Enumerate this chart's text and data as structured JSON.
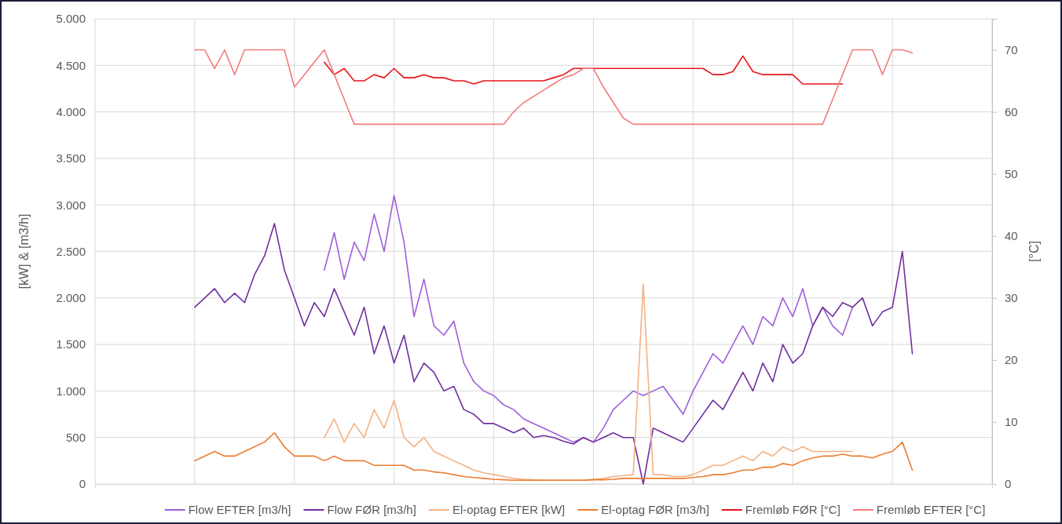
{
  "chart_data": {
    "type": "line",
    "categories": [
      null,
      null,
      null,
      null,
      null,
      null,
      null,
      null,
      null,
      null,
      null,
      null,
      null,
      null,
      null,
      null,
      null,
      null,
      null,
      null,
      null,
      null,
      null,
      null,
      null,
      null,
      null,
      null,
      null,
      null,
      null,
      null,
      null,
      null,
      null,
      null,
      null,
      null,
      null,
      null,
      null,
      null,
      null,
      null,
      null,
      null,
      null,
      null,
      null,
      null,
      null,
      null,
      null,
      null,
      null,
      null,
      null,
      null,
      null,
      null,
      null,
      null,
      null,
      null,
      null,
      null,
      null,
      null,
      null,
      null,
      null,
      null,
      null,
      null,
      null,
      null,
      null,
      null,
      null,
      null,
      null,
      null,
      null,
      null,
      null,
      null,
      null,
      null,
      null,
      null,
      null
    ],
    "ylabel": "[kW] & [m3/h]",
    "y2label": "[°C]",
    "ylim": [
      0,
      5000
    ],
    "yticks": [
      0,
      500,
      {
        "value": 1000,
        "label": "1.000"
      },
      {
        "value": 1500,
        "label": "1.500"
      },
      {
        "value": 2000,
        "label": "2.000"
      },
      {
        "value": 2500,
        "label": "2.500"
      },
      {
        "value": 3000,
        "label": "3.000"
      },
      {
        "value": 3500,
        "label": "3.500"
      },
      {
        "value": 4000,
        "label": "4.000"
      },
      {
        "value": 4500,
        "label": "4.500"
      },
      {
        "value": 5000,
        "label": "5.000"
      }
    ],
    "y2lim": [
      0,
      75
    ],
    "y2ticks": [
      0,
      10,
      20,
      30,
      40,
      50,
      60,
      70
    ],
    "grid": true,
    "legend": "bottom",
    "marker": "none",
    "line_style": "solid",
    "series": [
      {
        "name": "Flow EFTER [m3/h]",
        "color": "#9e5fd8",
        "values": [
          null,
          null,
          null,
          null,
          null,
          null,
          null,
          null,
          null,
          null,
          null,
          null,
          null,
          null,
          null,
          null,
          null,
          null,
          null,
          null,
          null,
          null,
          null,
          2300,
          2700,
          2200,
          2600,
          2400,
          2900,
          2500,
          3100,
          2600,
          1800,
          2200,
          1700,
          1600,
          1750,
          1300,
          1100,
          1000,
          950,
          850,
          800,
          700,
          650,
          600,
          550,
          500,
          450,
          500,
          450,
          600,
          800,
          900,
          1000,
          950,
          1000,
          1050,
          900,
          750,
          1000,
          1200,
          1400,
          1300,
          1500,
          1700,
          1500,
          1800,
          1700,
          2000,
          1800,
          2100,
          1700,
          1900,
          1700,
          1600,
          1900,
          null,
          null,
          null,
          null,
          null,
          null,
          null,
          null,
          null,
          null,
          null,
          null,
          null,
          null
        ]
      },
      {
        "name": "Flow FØR [m3/h]",
        "color": "#7030a0",
        "values": [
          null,
          null,
          null,
          null,
          null,
          null,
          null,
          null,
          null,
          null,
          1900,
          2000,
          2100,
          1950,
          2050,
          1950,
          2250,
          2450,
          2800,
          2300,
          2000,
          1700,
          1950,
          1800,
          2100,
          1850,
          1600,
          1900,
          1400,
          1700,
          1300,
          1600,
          1100,
          1300,
          1200,
          1000,
          1050,
          800,
          750,
          650,
          650,
          600,
          550,
          600,
          500,
          520,
          500,
          460,
          430,
          500,
          450,
          500,
          550,
          500,
          500,
          0,
          600,
          550,
          500,
          450,
          600,
          750,
          900,
          800,
          1000,
          1200,
          1000,
          1300,
          1100,
          1500,
          1300,
          1400,
          1700,
          1900,
          1800,
          1950,
          1900,
          2000,
          1700,
          1850,
          1900,
          2500,
          1400,
          null,
          null,
          null,
          null,
          null,
          null,
          null,
          null
        ]
      },
      {
        "name": "El-optag EFTER [kW]",
        "color": "#f4b183",
        "values": [
          null,
          null,
          null,
          null,
          null,
          null,
          null,
          null,
          null,
          null,
          null,
          null,
          null,
          null,
          null,
          null,
          null,
          null,
          null,
          null,
          null,
          null,
          null,
          500,
          700,
          450,
          650,
          500,
          800,
          600,
          900,
          500,
          400,
          500,
          350,
          300,
          250,
          200,
          150,
          120,
          100,
          80,
          60,
          50,
          45,
          40,
          40,
          40,
          40,
          40,
          50,
          60,
          80,
          90,
          100,
          2150,
          100,
          100,
          80,
          80,
          100,
          150,
          200,
          200,
          250,
          300,
          250,
          350,
          300,
          400,
          350,
          400,
          350,
          350,
          350,
          350,
          350,
          null,
          null,
          null,
          null,
          null,
          null,
          null,
          null,
          null,
          null,
          null,
          null,
          null,
          null
        ]
      },
      {
        "name": "El-optag FØR [m3/h]",
        "color": "#ed7d31",
        "values": [
          null,
          null,
          null,
          null,
          null,
          null,
          null,
          null,
          null,
          null,
          250,
          300,
          350,
          300,
          300,
          350,
          400,
          450,
          550,
          400,
          300,
          300,
          300,
          250,
          300,
          250,
          250,
          250,
          200,
          200,
          200,
          200,
          150,
          150,
          130,
          120,
          100,
          80,
          70,
          60,
          50,
          45,
          40,
          40,
          40,
          40,
          40,
          40,
          40,
          40,
          45,
          45,
          50,
          60,
          60,
          60,
          60,
          60,
          60,
          60,
          70,
          80,
          100,
          100,
          120,
          150,
          150,
          180,
          180,
          220,
          200,
          250,
          280,
          300,
          300,
          320,
          300,
          300,
          280,
          320,
          350,
          450,
          150,
          null,
          null,
          null,
          null,
          null,
          null,
          null,
          null
        ]
      },
      {
        "name": "Fremløb FØR [°C]",
        "color": "#e8131b",
        "axis": "y2",
        "values": [
          null,
          null,
          null,
          null,
          null,
          null,
          null,
          null,
          null,
          null,
          null,
          null,
          null,
          null,
          null,
          null,
          null,
          null,
          null,
          null,
          null,
          null,
          null,
          68,
          66,
          67,
          65,
          65,
          66,
          65.5,
          67,
          65.5,
          65.5,
          66,
          65.5,
          65.5,
          65,
          65,
          64.5,
          65,
          65,
          65,
          65,
          65,
          65,
          65,
          65.5,
          66,
          67,
          67,
          67,
          67,
          67,
          67,
          67,
          67,
          67,
          67,
          67,
          67,
          67,
          67,
          66,
          66,
          66.5,
          69,
          66.5,
          66,
          66,
          66,
          66,
          64.5,
          64.5,
          64.5,
          64.5,
          64.5,
          null,
          null,
          null,
          null,
          null,
          null,
          null,
          null,
          null,
          null,
          null,
          null,
          null,
          null,
          null
        ]
      },
      {
        "name": "Fremløb EFTER [°C]",
        "color": "#f47b7b",
        "axis": "y2",
        "values": [
          null,
          null,
          null,
          null,
          null,
          null,
          null,
          null,
          null,
          null,
          70,
          70,
          67,
          70,
          66,
          70,
          70,
          70,
          70,
          70,
          64,
          66,
          68,
          70,
          66,
          62,
          58,
          58,
          58,
          58,
          58,
          58,
          58,
          58,
          58,
          58,
          58,
          58,
          58,
          58,
          58,
          58,
          60,
          61.5,
          62.5,
          63.5,
          64.5,
          65.5,
          66,
          67,
          67,
          64,
          61.5,
          59,
          58,
          58,
          58,
          58,
          58,
          58,
          58,
          58,
          58,
          58,
          58,
          58,
          58,
          58,
          58,
          58,
          58,
          58,
          58,
          58,
          62,
          66,
          70,
          70,
          70,
          66,
          70,
          70,
          69.5,
          null,
          null,
          null,
          null,
          null,
          null,
          null,
          null
        ]
      }
    ]
  }
}
